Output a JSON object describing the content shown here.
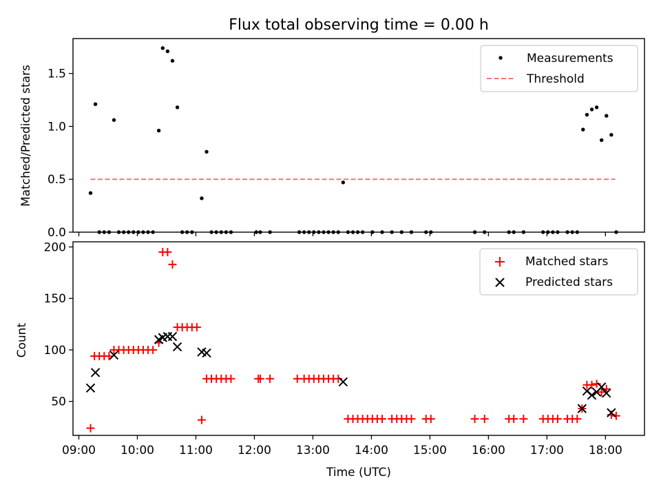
{
  "figure": {
    "title": "Flux total observing time = 0.00 h"
  },
  "chart_data": [
    {
      "type": "scatter",
      "ylabel": "Matched/Predicted stars",
      "xlabel": "",
      "xlim": [
        "08:54",
        "18:40"
      ],
      "ylim": [
        0,
        1.83
      ],
      "yticks": [
        "0.0",
        "0.5",
        "1.0",
        "1.5"
      ],
      "legend_position": "upper right",
      "series": [
        {
          "name": "Measurements",
          "marker": "dot",
          "color": "#000000",
          "points": [
            [
              "09:12",
              0.37
            ],
            [
              "09:17",
              1.21
            ],
            [
              "09:36",
              1.06
            ],
            [
              "10:22",
              0.96
            ],
            [
              "10:26",
              1.74
            ],
            [
              "10:31",
              1.71
            ],
            [
              "10:36",
              1.62
            ],
            [
              "10:41",
              1.18
            ],
            [
              "11:06",
              0.32
            ],
            [
              "11:11",
              0.76
            ],
            [
              "13:31",
              0.47
            ],
            [
              "17:37",
              0.97
            ],
            [
              "17:41",
              1.11
            ],
            [
              "17:46",
              1.16
            ],
            [
              "17:51",
              1.18
            ],
            [
              "17:56",
              0.87
            ],
            [
              "18:01",
              1.1
            ],
            [
              "18:06",
              0.92
            ],
            [
              "09:21",
              0.0
            ],
            [
              "09:26",
              0.0
            ],
            [
              "09:31",
              0.0
            ],
            [
              "09:41",
              0.0
            ],
            [
              "09:46",
              0.0
            ],
            [
              "09:51",
              0.0
            ],
            [
              "09:56",
              0.0
            ],
            [
              "10:01",
              0.0
            ],
            [
              "10:06",
              0.0
            ],
            [
              "10:11",
              0.0
            ],
            [
              "10:16",
              0.0
            ],
            [
              "10:46",
              0.0
            ],
            [
              "10:51",
              0.0
            ],
            [
              "10:56",
              0.0
            ],
            [
              "11:16",
              0.0
            ],
            [
              "11:21",
              0.0
            ],
            [
              "11:26",
              0.0
            ],
            [
              "11:31",
              0.0
            ],
            [
              "11:36",
              0.0
            ],
            [
              "12:02",
              0.0
            ],
            [
              "12:06",
              0.0
            ],
            [
              "12:16",
              0.0
            ],
            [
              "12:46",
              0.0
            ],
            [
              "12:51",
              0.0
            ],
            [
              "12:56",
              0.0
            ],
            [
              "13:01",
              0.0
            ],
            [
              "13:06",
              0.0
            ],
            [
              "13:11",
              0.0
            ],
            [
              "13:16",
              0.0
            ],
            [
              "13:21",
              0.0
            ],
            [
              "13:26",
              0.0
            ],
            [
              "13:36",
              0.0
            ],
            [
              "13:41",
              0.0
            ],
            [
              "13:46",
              0.0
            ],
            [
              "13:51",
              0.0
            ],
            [
              "14:01",
              0.0
            ],
            [
              "14:11",
              0.0
            ],
            [
              "14:21",
              0.0
            ],
            [
              "14:31",
              0.0
            ],
            [
              "14:41",
              0.0
            ],
            [
              "14:56",
              0.0
            ],
            [
              "15:01",
              0.0
            ],
            [
              "15:46",
              0.0
            ],
            [
              "15:56",
              0.0
            ],
            [
              "16:21",
              0.0
            ],
            [
              "16:26",
              0.0
            ],
            [
              "16:36",
              0.0
            ],
            [
              "16:56",
              0.0
            ],
            [
              "17:01",
              0.0
            ],
            [
              "17:06",
              0.0
            ],
            [
              "17:11",
              0.0
            ],
            [
              "17:21",
              0.0
            ],
            [
              "17:26",
              0.0
            ],
            [
              "17:31",
              0.0
            ],
            [
              "18:11",
              0.0
            ]
          ]
        },
        {
          "name": "Threshold",
          "marker": "dashed-line",
          "color": "#ff7070",
          "points": [
            [
              "09:12",
              0.5
            ],
            [
              "18:10",
              0.5
            ]
          ]
        }
      ]
    },
    {
      "type": "scatter",
      "ylabel": "Count",
      "xlabel": "Time (UTC)",
      "xlim": [
        "08:54",
        "18:40"
      ],
      "ylim": [
        17,
        205
      ],
      "yticks": [
        "50",
        "100",
        "150",
        "200"
      ],
      "xticks": [
        "09:00",
        "10:00",
        "11:00",
        "12:00",
        "13:00",
        "14:00",
        "15:00",
        "16:00",
        "17:00",
        "18:00"
      ],
      "legend_position": "upper right",
      "series": [
        {
          "name": "Matched stars",
          "marker": "plus",
          "color": "#ff0000",
          "points": [
            [
              "09:12",
              24
            ],
            [
              "09:16",
              94
            ],
            [
              "09:21",
              94
            ],
            [
              "09:26",
              94
            ],
            [
              "09:31",
              94
            ],
            [
              "09:36",
              100
            ],
            [
              "09:41",
              100
            ],
            [
              "09:46",
              100
            ],
            [
              "09:51",
              100
            ],
            [
              "09:56",
              100
            ],
            [
              "10:01",
              100
            ],
            [
              "10:06",
              100
            ],
            [
              "10:11",
              100
            ],
            [
              "10:16",
              100
            ],
            [
              "10:22",
              107
            ],
            [
              "10:26",
              195
            ],
            [
              "10:31",
              195
            ],
            [
              "10:36",
              183
            ],
            [
              "10:41",
              122
            ],
            [
              "10:46",
              122
            ],
            [
              "10:51",
              122
            ],
            [
              "10:56",
              122
            ],
            [
              "11:01",
              122
            ],
            [
              "11:06",
              32
            ],
            [
              "11:11",
              72
            ],
            [
              "11:16",
              72
            ],
            [
              "11:21",
              72
            ],
            [
              "11:26",
              72
            ],
            [
              "11:31",
              72
            ],
            [
              "11:36",
              72
            ],
            [
              "12:04",
              72
            ],
            [
              "12:06",
              72
            ],
            [
              "12:16",
              72
            ],
            [
              "12:44",
              72
            ],
            [
              "12:51",
              72
            ],
            [
              "12:56",
              72
            ],
            [
              "13:01",
              72
            ],
            [
              "13:06",
              72
            ],
            [
              "13:11",
              72
            ],
            [
              "13:16",
              72
            ],
            [
              "13:21",
              72
            ],
            [
              "13:26",
              72
            ],
            [
              "13:36",
              33
            ],
            [
              "13:41",
              33
            ],
            [
              "13:46",
              33
            ],
            [
              "13:51",
              33
            ],
            [
              "13:56",
              33
            ],
            [
              "14:01",
              33
            ],
            [
              "14:06",
              33
            ],
            [
              "14:11",
              33
            ],
            [
              "14:21",
              33
            ],
            [
              "14:26",
              33
            ],
            [
              "14:31",
              33
            ],
            [
              "14:36",
              33
            ],
            [
              "14:41",
              33
            ],
            [
              "14:56",
              33
            ],
            [
              "15:01",
              33
            ],
            [
              "15:46",
              33
            ],
            [
              "15:56",
              33
            ],
            [
              "16:21",
              33
            ],
            [
              "16:26",
              33
            ],
            [
              "16:36",
              33
            ],
            [
              "16:56",
              33
            ],
            [
              "17:01",
              33
            ],
            [
              "17:06",
              33
            ],
            [
              "17:11",
              33
            ],
            [
              "17:21",
              33
            ],
            [
              "17:26",
              33
            ],
            [
              "17:31",
              33
            ],
            [
              "17:36",
              43
            ],
            [
              "17:41",
              66
            ],
            [
              "17:46",
              66
            ],
            [
              "17:51",
              67
            ],
            [
              "17:56",
              59
            ],
            [
              "18:01",
              62
            ],
            [
              "18:06",
              37
            ],
            [
              "18:11",
              36
            ]
          ]
        },
        {
          "name": "Predicted stars",
          "marker": "x",
          "color": "#000000",
          "points": [
            [
              "09:12",
              63
            ],
            [
              "09:17",
              78
            ],
            [
              "09:36",
              95
            ],
            [
              "10:22",
              110
            ],
            [
              "10:26",
              112
            ],
            [
              "10:31",
              113
            ],
            [
              "10:36",
              113
            ],
            [
              "10:41",
              103
            ],
            [
              "11:06",
              98
            ],
            [
              "11:11",
              97
            ],
            [
              "13:31",
              69
            ],
            [
              "17:36",
              43
            ],
            [
              "17:41",
              60
            ],
            [
              "17:46",
              56
            ],
            [
              "17:51",
              59
            ],
            [
              "17:56",
              64
            ],
            [
              "18:01",
              58
            ],
            [
              "18:06",
              39
            ]
          ]
        }
      ]
    }
  ]
}
